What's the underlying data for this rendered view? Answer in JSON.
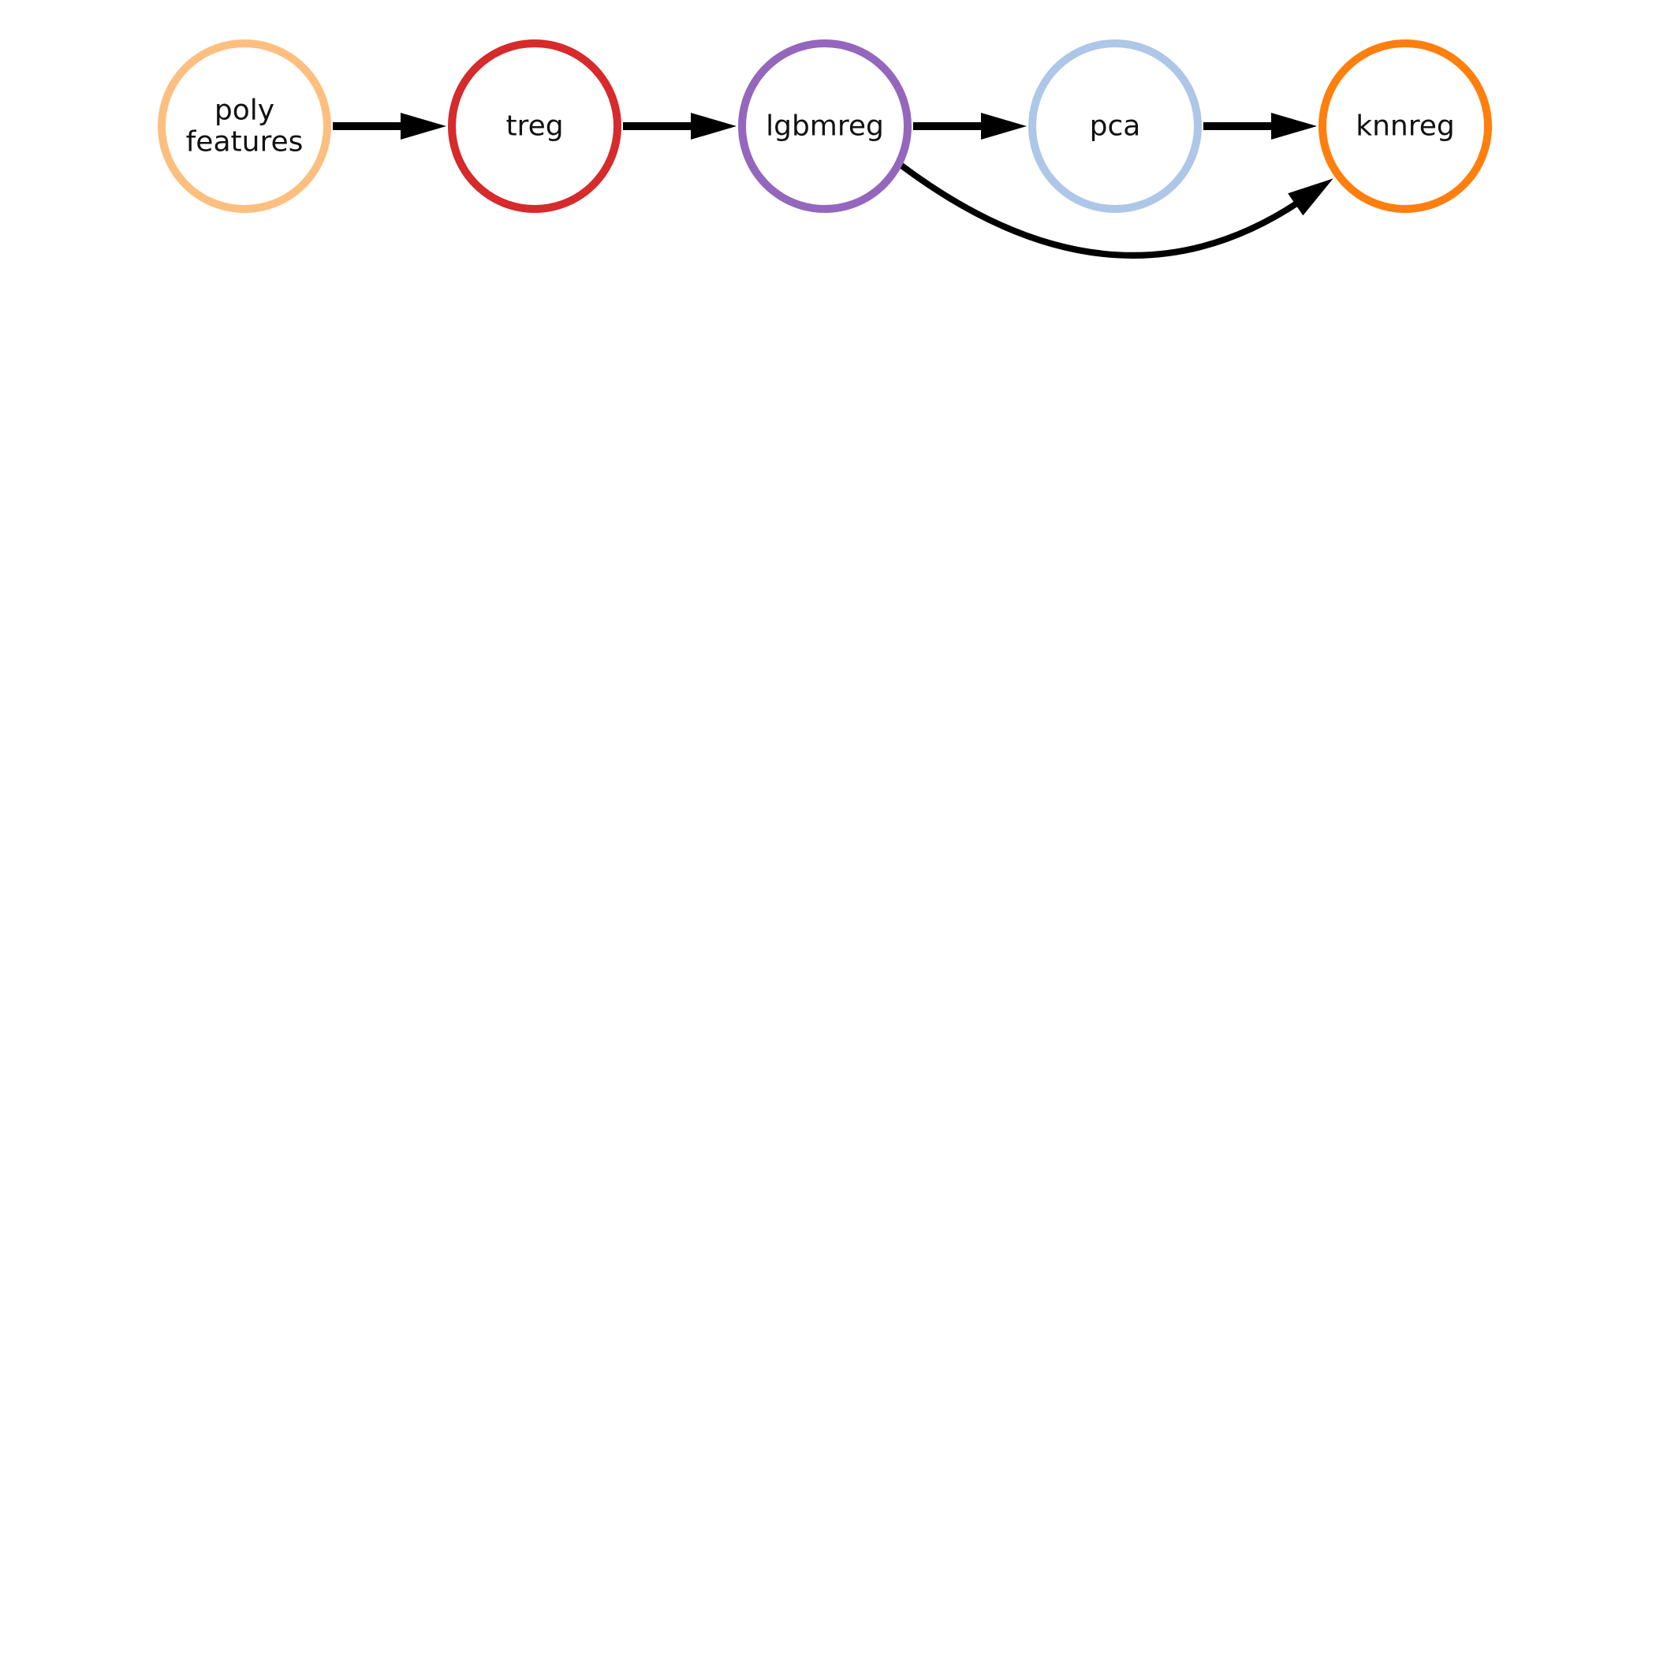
{
  "nodes": [
    {
      "id": "poly_features",
      "lines": [
        "poly",
        "features"
      ],
      "color": "#fdbf7f"
    },
    {
      "id": "treg",
      "lines": [
        "treg"
      ],
      "color": "#d62a2b"
    },
    {
      "id": "lgbmreg",
      "lines": [
        "lgbmreg"
      ],
      "color": "#9467bd"
    },
    {
      "id": "pca",
      "lines": [
        "pca"
      ],
      "color": "#aec7e8"
    },
    {
      "id": "knnreg",
      "lines": [
        "knnreg"
      ],
      "color": "#ff7f0e"
    }
  ],
  "edges": [
    {
      "from": "poly_features",
      "to": "treg",
      "curved": false
    },
    {
      "from": "treg",
      "to": "lgbmreg",
      "curved": false
    },
    {
      "from": "lgbmreg",
      "to": "pca",
      "curved": false
    },
    {
      "from": "pca",
      "to": "knnreg",
      "curved": false
    },
    {
      "from": "lgbmreg",
      "to": "knnreg",
      "curved": true
    }
  ],
  "edge_color": "#000000"
}
